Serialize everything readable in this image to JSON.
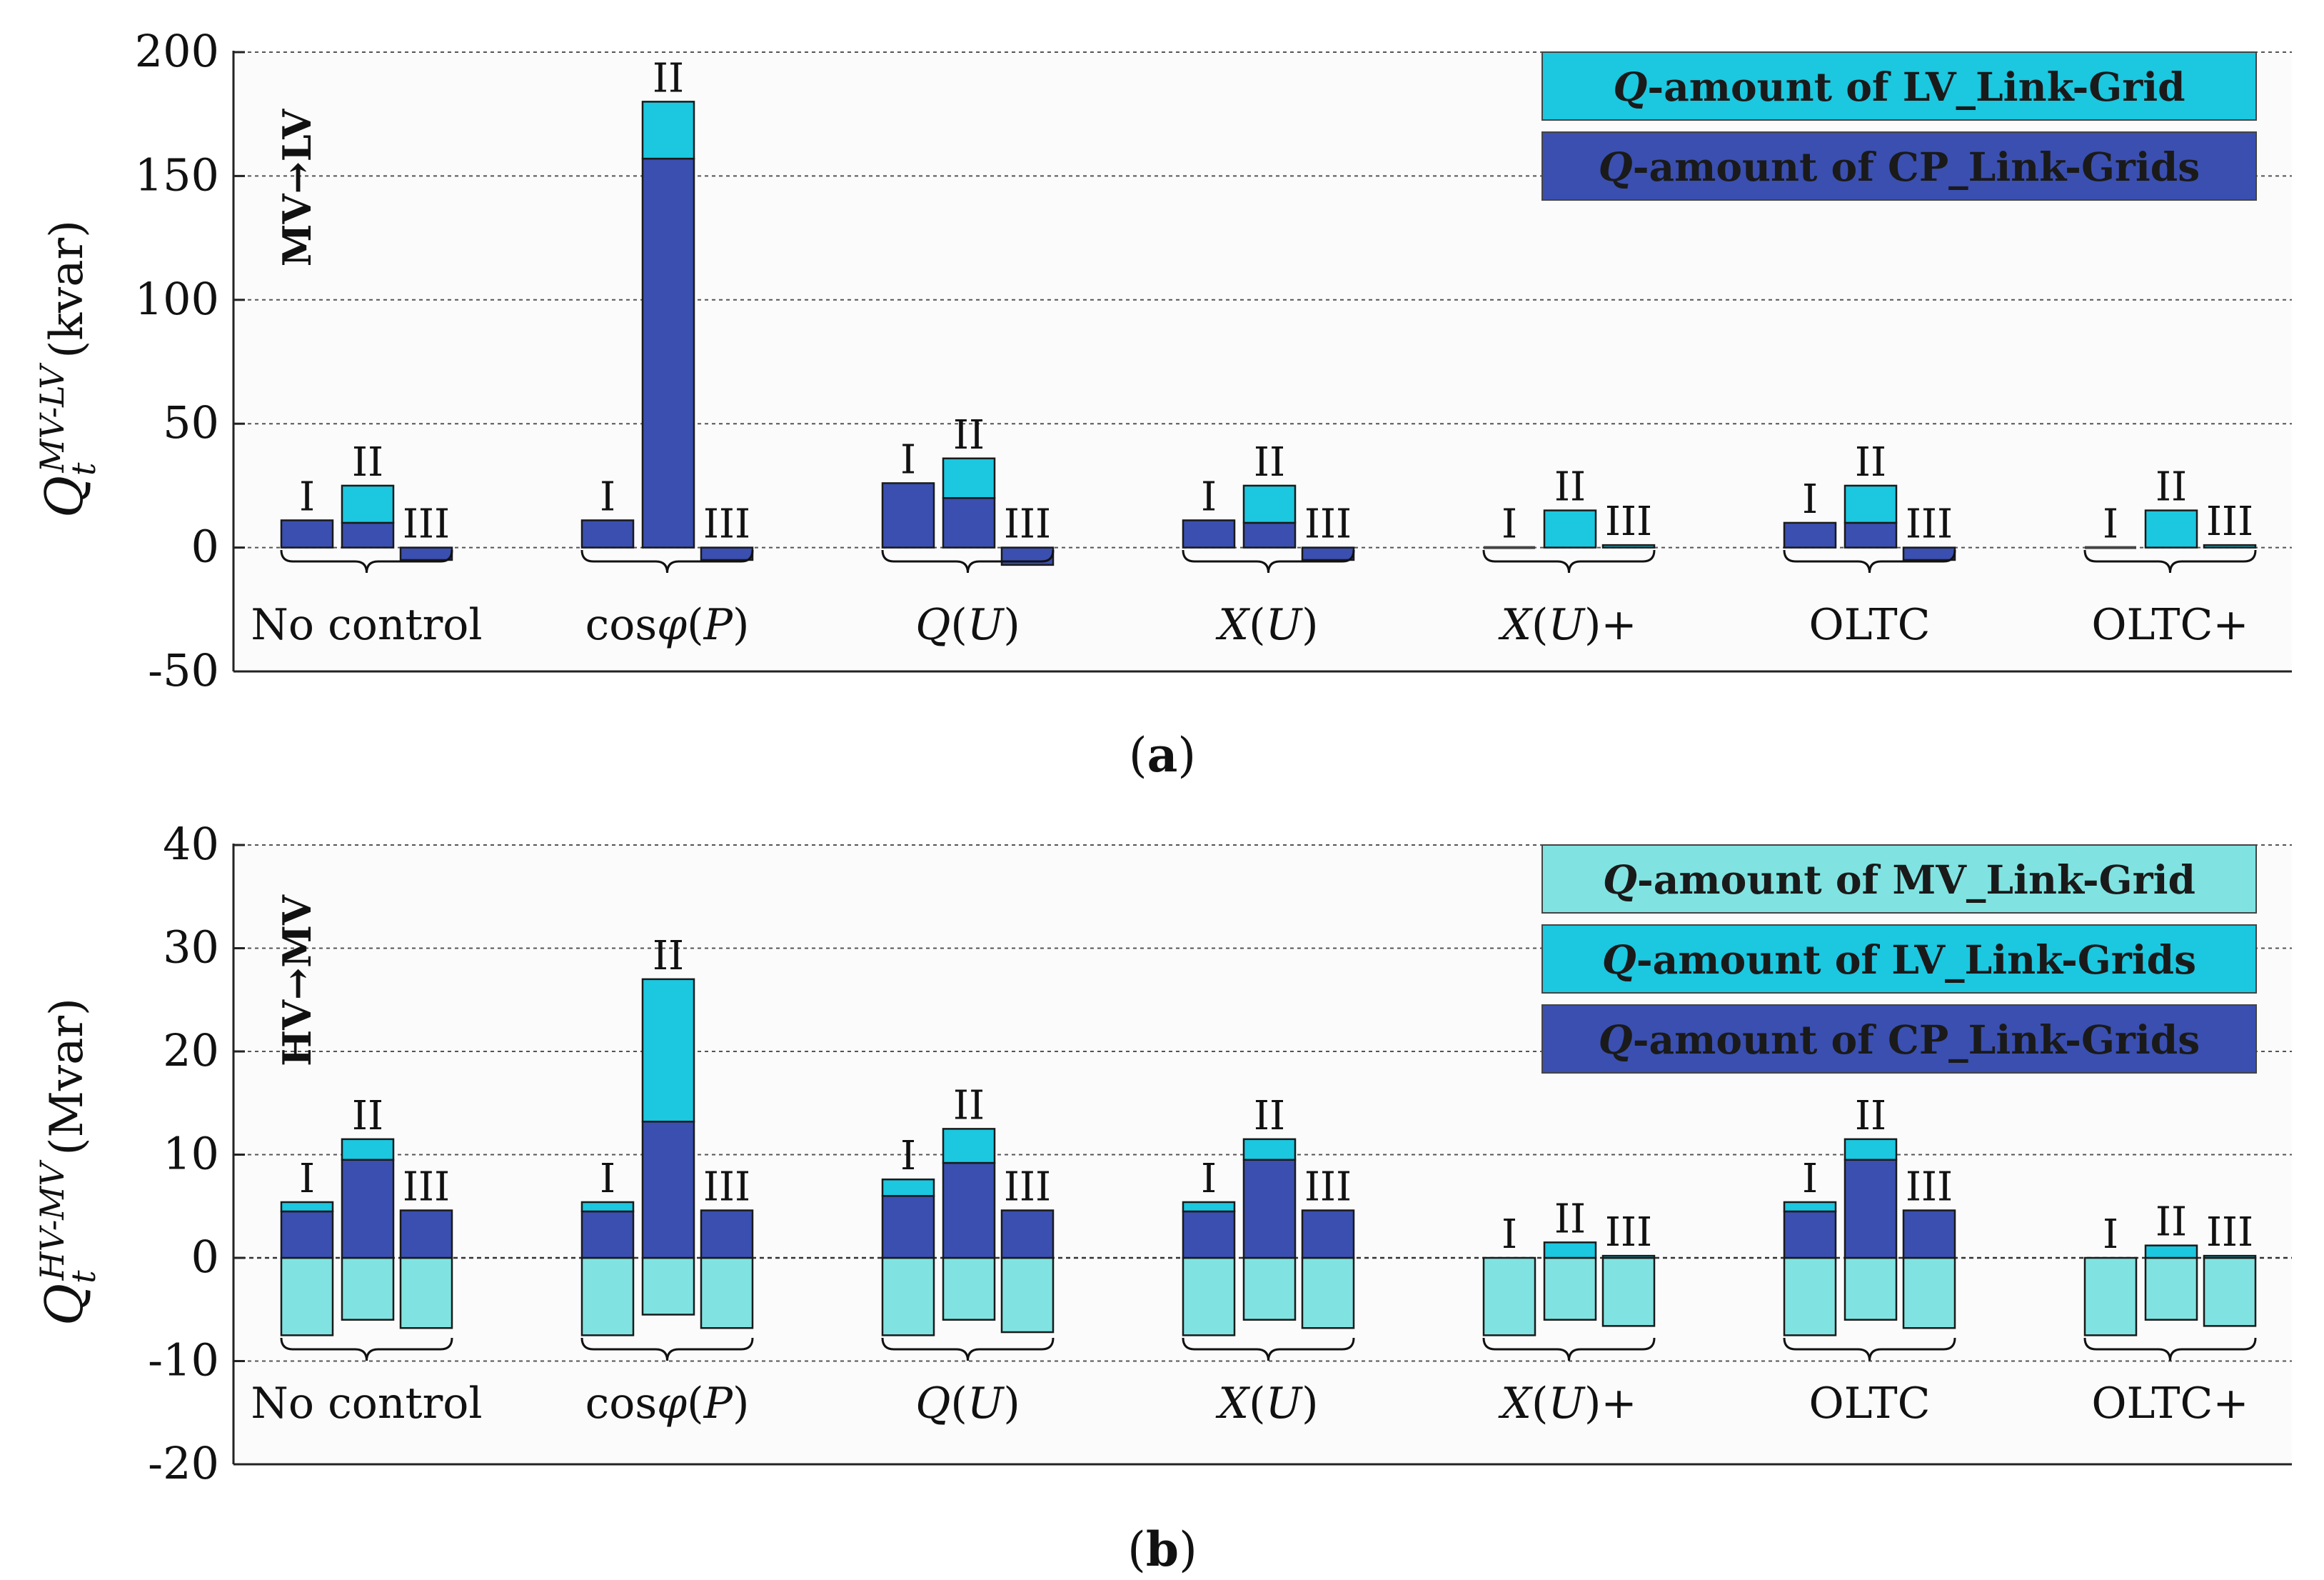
{
  "colors": {
    "cp": "#3a4fb0",
    "lv": "#1cc7e0",
    "mv": "#80e3e1"
  },
  "chart_data": [
    {
      "type": "bar",
      "subtype": "stacked",
      "caption_letter": "a",
      "direction_label": "MV→LV",
      "ylabel_main": "Q",
      "ylabel_sub": "t",
      "ylabel_sup": "MV-LV",
      "ylabel_unit": "(kvar)",
      "ylim": [
        -50,
        200
      ],
      "yticks": [
        -50,
        0,
        50,
        100,
        150,
        200
      ],
      "grid": true,
      "legend_position": "top-right",
      "legend": [
        {
          "key": "lv",
          "q": "Q",
          "text": "-amount of LV_Link-Grid"
        },
        {
          "key": "cp",
          "q": "Q",
          "text": "-amount of CP_Link-Grids"
        }
      ],
      "scenario_labels": [
        "I",
        "II",
        "III"
      ],
      "categories": [
        "No control",
        "cosφ(P)",
        "Q(U)",
        "X(U)",
        "X(U)+",
        "OLTC",
        "OLTC+"
      ],
      "series": [
        {
          "name": "CP_Link-Grids",
          "key": "cp",
          "values": [
            [
              11,
              10,
              -5
            ],
            [
              11,
              157,
              -5
            ],
            [
              26,
              20,
              -7
            ],
            [
              11,
              10,
              -5
            ],
            [
              0,
              0,
              0
            ],
            [
              10,
              10,
              -5
            ],
            [
              0,
              0,
              0
            ]
          ]
        },
        {
          "name": "LV_Link-Grid",
          "key": "lv",
          "values": [
            [
              0,
              15,
              0
            ],
            [
              0,
              23,
              0
            ],
            [
              0,
              16,
              0
            ],
            [
              0,
              15,
              0
            ],
            [
              0,
              15,
              1
            ],
            [
              0,
              15,
              0
            ],
            [
              0,
              15,
              1
            ]
          ]
        }
      ]
    },
    {
      "type": "bar",
      "subtype": "stacked",
      "caption_letter": "b",
      "direction_label": "HV→MV",
      "ylabel_main": "Q",
      "ylabel_sub": "t",
      "ylabel_sup": "HV-MV",
      "ylabel_unit": "(Mvar)",
      "ylim": [
        -20,
        40
      ],
      "yticks": [
        -20,
        -10,
        0,
        10,
        20,
        30,
        40
      ],
      "grid": true,
      "legend_position": "top-right",
      "legend": [
        {
          "key": "mv",
          "q": "Q",
          "text": "-amount of MV_Link-Grid"
        },
        {
          "key": "lv",
          "q": "Q",
          "text": "-amount of LV_Link-Grids"
        },
        {
          "key": "cp",
          "q": "Q",
          "text": "-amount of CP_Link-Grids"
        }
      ],
      "scenario_labels": [
        "I",
        "II",
        "III"
      ],
      "categories": [
        "No control",
        "cosφ(P)",
        "Q(U)",
        "X(U)",
        "X(U)+",
        "OLTC",
        "OLTC+"
      ],
      "series": [
        {
          "name": "MV_Link-Grid",
          "key": "mv",
          "values": [
            [
              -7.5,
              -6,
              -6.8
            ],
            [
              -7.5,
              -5.5,
              -6.8
            ],
            [
              -7.5,
              -6,
              -7.2
            ],
            [
              -7.5,
              -6,
              -6.8
            ],
            [
              -7.5,
              -6,
              -6.6
            ],
            [
              -7.5,
              -6,
              -6.8
            ],
            [
              -7.5,
              -6,
              -6.6
            ]
          ]
        },
        {
          "name": "CP_Link-Grids",
          "key": "cp",
          "values": [
            [
              4.5,
              9.5,
              4.6
            ],
            [
              4.5,
              13.2,
              4.6
            ],
            [
              6.0,
              9.2,
              4.6
            ],
            [
              4.5,
              9.5,
              4.6
            ],
            [
              0,
              0,
              0
            ],
            [
              4.5,
              9.5,
              4.6
            ],
            [
              0,
              0,
              0
            ]
          ]
        },
        {
          "name": "LV_Link-Grids",
          "key": "lv",
          "values": [
            [
              0.9,
              2.0,
              0
            ],
            [
              0.9,
              13.8,
              0
            ],
            [
              1.6,
              3.3,
              0
            ],
            [
              0.9,
              2.0,
              0
            ],
            [
              0,
              1.5,
              0.2
            ],
            [
              0.9,
              2.0,
              0
            ],
            [
              0,
              1.2,
              0.2
            ]
          ]
        }
      ]
    }
  ]
}
